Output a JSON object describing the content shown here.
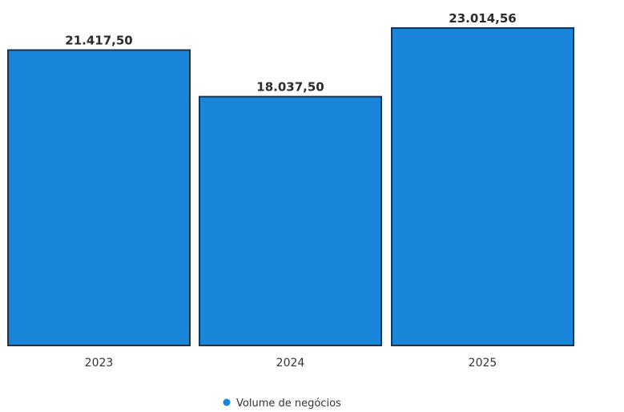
{
  "chart_data": {
    "type": "bar",
    "categories": [
      "2023",
      "2024",
      "2025"
    ],
    "series": [
      {
        "name": "Volume de negócios",
        "values": [
          21417.5,
          18037.5,
          23014.56
        ]
      }
    ],
    "value_labels": [
      "21.417,50",
      "18.037,50",
      "23.014,56"
    ],
    "ylim": [
      0,
      23014.56
    ],
    "grid": false,
    "legend_position": "bottom-center",
    "colors": {
      "bar_fill": "#1a86d9",
      "bar_stroke": "#1b3550",
      "legend_marker": "#1a86d9"
    }
  },
  "legend": {
    "items": [
      {
        "label": "Volume de negócios",
        "color": "#1a86d9"
      }
    ]
  }
}
